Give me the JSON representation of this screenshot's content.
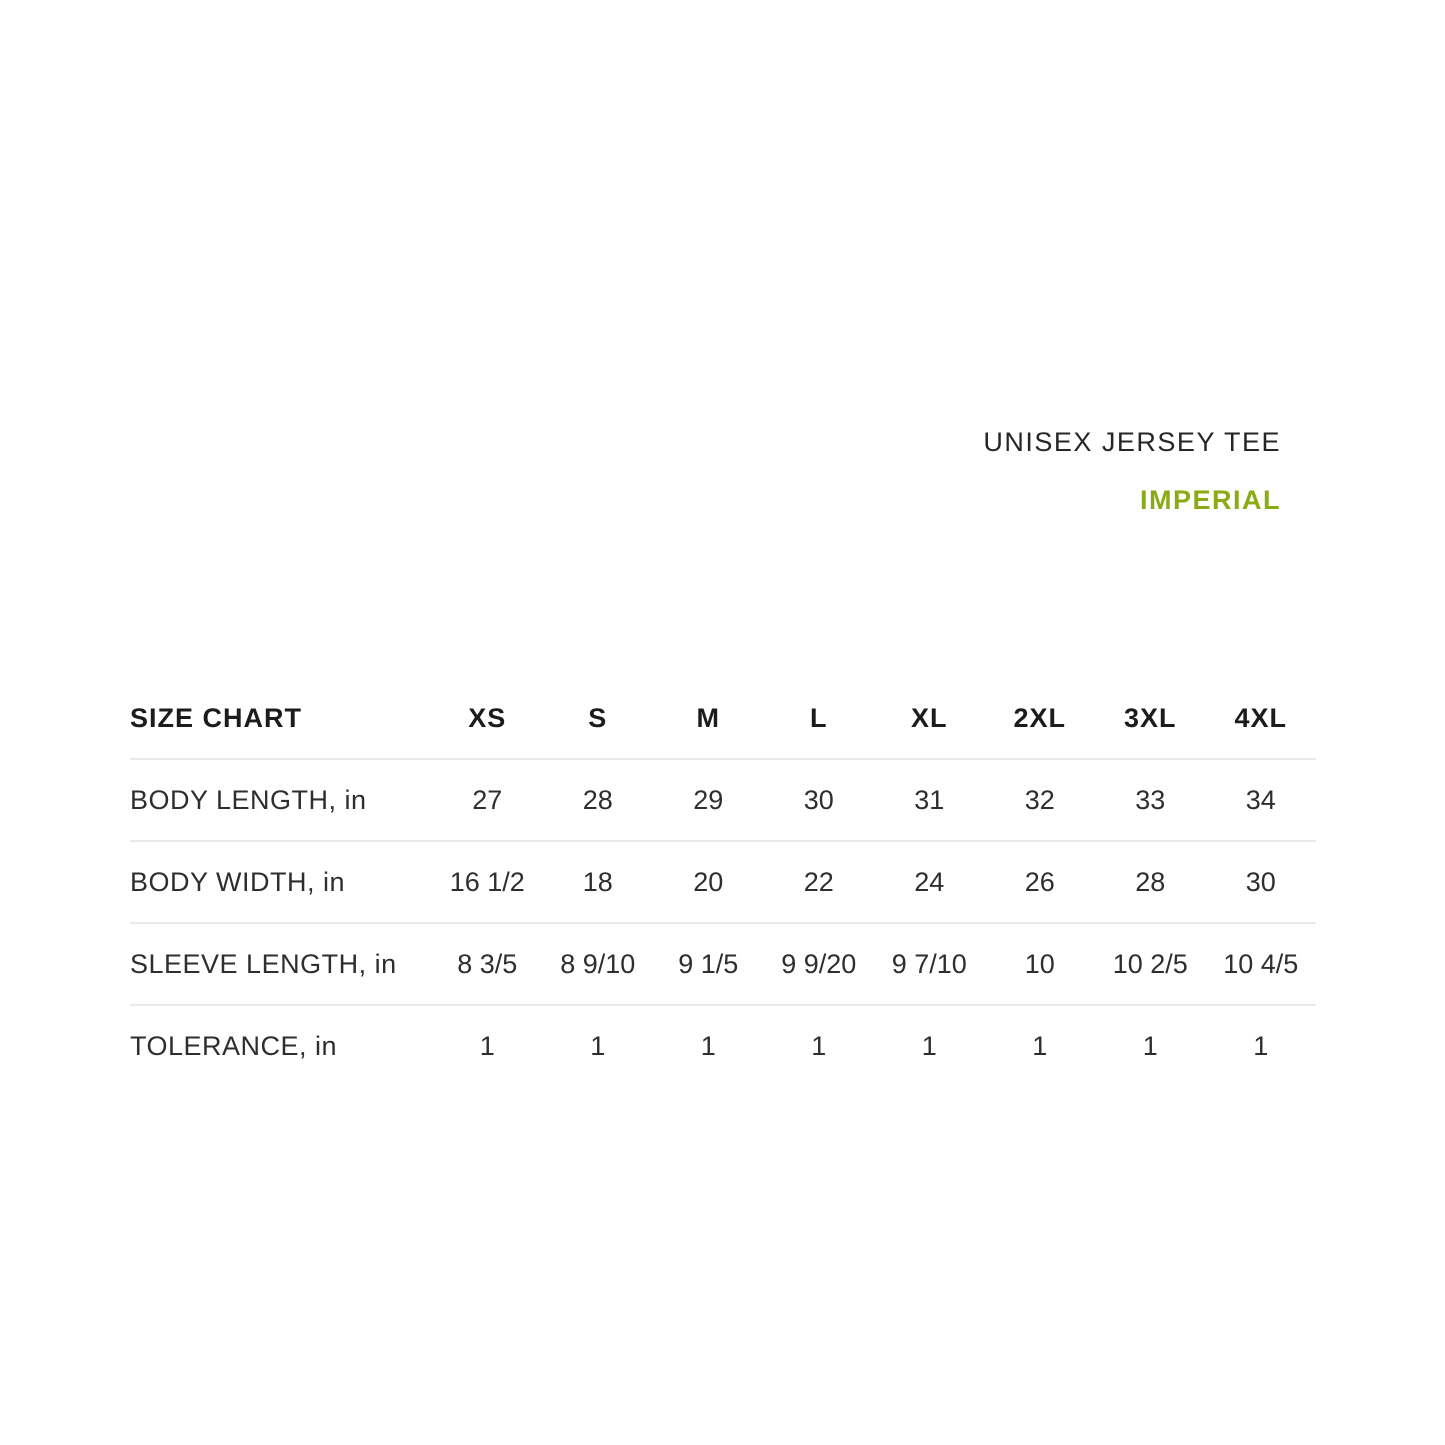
{
  "header": {
    "product_title": "UNISEX JERSEY TEE",
    "unit_label": "IMPERIAL"
  },
  "colors": {
    "accent_green": "#8aab14",
    "text_dark": "#262626",
    "divider": "#e9e9e9"
  },
  "chart_data": {
    "type": "table",
    "title": "UNISEX JERSEY TEE",
    "unit_system": "IMPERIAL",
    "corner_label": "SIZE CHART",
    "size_columns": [
      "XS",
      "S",
      "M",
      "L",
      "XL",
      "2XL",
      "3XL",
      "4XL"
    ],
    "rows": [
      {
        "label": "BODY LENGTH, in",
        "values": [
          "27",
          "28",
          "29",
          "30",
          "31",
          "32",
          "33",
          "34"
        ]
      },
      {
        "label": "BODY WIDTH, in",
        "values": [
          "16 1/2",
          "18",
          "20",
          "22",
          "24",
          "26",
          "28",
          "30"
        ]
      },
      {
        "label": "SLEEVE LENGTH, in",
        "values": [
          "8 3/5",
          "8 9/10",
          "9 1/5",
          "9 9/20",
          "9 7/10",
          "10",
          "10 2/5",
          "10 4/5"
        ]
      },
      {
        "label": "TOLERANCE, in",
        "values": [
          "1",
          "1",
          "1",
          "1",
          "1",
          "1",
          "1",
          "1"
        ]
      }
    ]
  }
}
